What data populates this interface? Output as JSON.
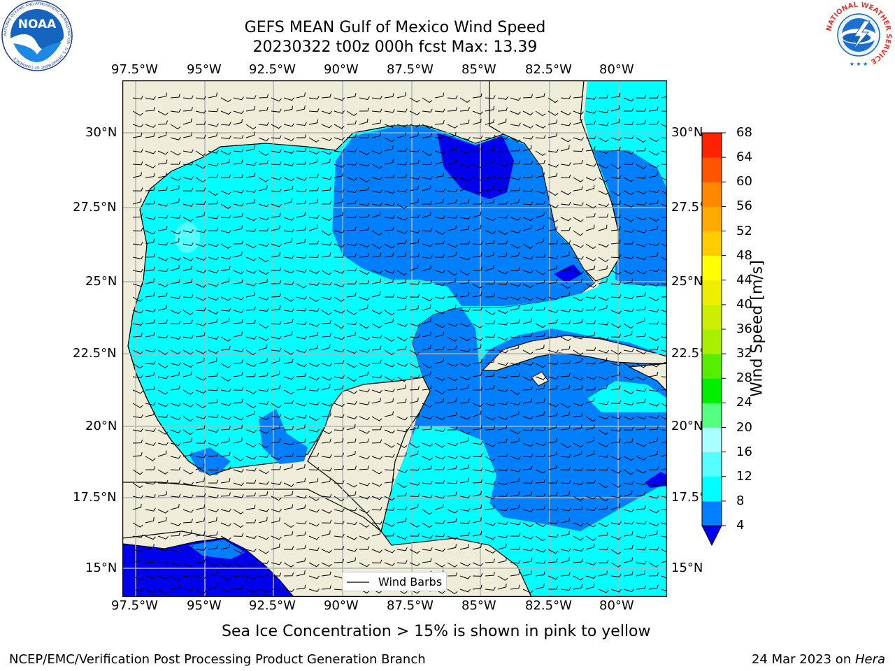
{
  "title": {
    "line1": "GEFS MEAN Gulf of Mexico Wind Speed",
    "line2": "20230322 t00z 000h fcst   Max: 13.39"
  },
  "map": {
    "lon_ticks": [
      "97.5°W",
      "95°W",
      "92.5°W",
      "90°W",
      "87.5°W",
      "85°W",
      "82.5°W",
      "80°W"
    ],
    "lat_ticks_left": [
      "30°N",
      "27.5°N",
      "25°N",
      "22.5°N",
      "20°N",
      "17.5°N",
      "15°N"
    ],
    "lat_ticks_right": [
      "30°N",
      "27.5°N",
      "25°N",
      "22.5°N",
      "20°N",
      "17.5°N",
      "15°N"
    ],
    "legend_label": "Wind Barbs",
    "colors": {
      "land": "#efedd9",
      "band_4_8": "#0080ff",
      "band_8_12": "#00ffff",
      "band_12_16": "#55ffff",
      "below_4": "#0000ee",
      "grid": "#b3b3b3"
    }
  },
  "colorbar": {
    "label": "Wind Speed [m/s]",
    "levels": [
      "4",
      "8",
      "12",
      "16",
      "20",
      "24",
      "28",
      "32",
      "36",
      "40",
      "44",
      "48",
      "52",
      "56",
      "60",
      "64",
      "68"
    ],
    "colors": [
      "#0080ff",
      "#00ffff",
      "#55ffff",
      "#aaffff",
      "#55ff80",
      "#00ee00",
      "#55ee00",
      "#aaee00",
      "#ccee00",
      "#eeee00",
      "#ffff00",
      "#ffcc00",
      "#ffaa00",
      "#ff8800",
      "#ff5500",
      "#ff2200"
    ],
    "under_color": "#0000ee"
  },
  "caption": "Sea Ice Concentration > 15% is shown in pink to yellow",
  "footer": {
    "left": "NCEP/EMC/Verification Post Processing Product Generation Branch",
    "right_date": "24 Mar 2023 on ",
    "right_machine": "Hera"
  },
  "logos": {
    "noaa_text": "NOAA",
    "noaa_ring": "NATIONAL OCEANIC AND ATMOSPHERIC ADMINISTRATION · U.S. DEPARTMENT OF COMMERCE",
    "nws_ring": "NATIONAL WEATHER SERVICE"
  }
}
